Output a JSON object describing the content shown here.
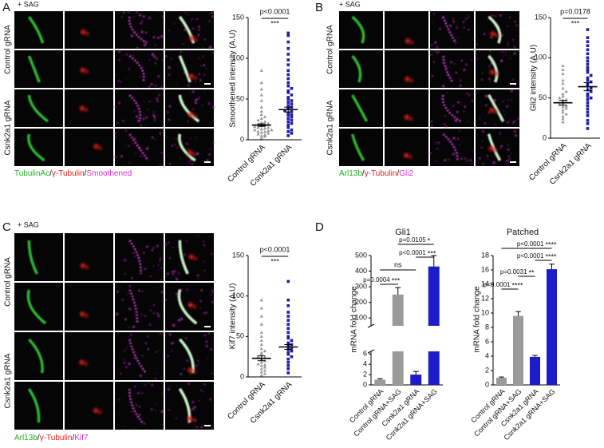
{
  "figure": {
    "panels": [
      {
        "letter": "A",
        "condition": "+ SAG",
        "rows": [
          "Control gRNA",
          "Csnk2a1 gRNA"
        ],
        "stain": [
          {
            "text": "TubulinAc",
            "color": "#22b022"
          },
          {
            "text": "/",
            "color": "#111111"
          },
          {
            "text": "γ-Tubulin",
            "color": "#e02020"
          },
          {
            "text": "/",
            "color": "#111111"
          },
          {
            "text": "Smoothened",
            "color": "#d030d0"
          }
        ]
      },
      {
        "letter": "B",
        "condition": "+ SAG",
        "rows": [
          "Control gRNA",
          "Csnk2a1 gRNA"
        ],
        "stain": [
          {
            "text": "Arl13b",
            "color": "#22b022"
          },
          {
            "text": "/",
            "color": "#111111"
          },
          {
            "text": "γ-Tubulin",
            "color": "#e02020"
          },
          {
            "text": "/",
            "color": "#111111"
          },
          {
            "text": "Gli2",
            "color": "#d030d0"
          }
        ]
      },
      {
        "letter": "C",
        "condition": "+ SAG",
        "rows": [
          "Control gRNA",
          "Csnk2a1 gRNA"
        ],
        "stain": [
          {
            "text": "Arl13b",
            "color": "#22b022"
          },
          {
            "text": "/",
            "color": "#111111"
          },
          {
            "text": "γ-Tubulin",
            "color": "#e02020"
          },
          {
            "text": "/",
            "color": "#111111"
          },
          {
            "text": "Kif7",
            "color": "#d030d0"
          }
        ]
      },
      {
        "letter": "D"
      }
    ]
  },
  "chart_data": [
    {
      "type": "dot",
      "ylabel": "Smoothened intensity (A.U)",
      "ylim": [
        0,
        150
      ],
      "yticks": [
        0,
        50,
        100,
        150
      ],
      "annotation": {
        "p": "p<0.0001",
        "stars": "***"
      },
      "series": [
        {
          "name": "Control gRNA",
          "color": "#9a9a9a",
          "marker": "triangle",
          "mean": 18,
          "sem": 1.5,
          "values": [
            2,
            4,
            5,
            6,
            7,
            8,
            9,
            10,
            10,
            11,
            12,
            12,
            13,
            14,
            15,
            15,
            16,
            17,
            18,
            19,
            20,
            21,
            22,
            24,
            26,
            28,
            31,
            35,
            40,
            48,
            55,
            62,
            70,
            85
          ]
        },
        {
          "name": "Csnk2a1 gRNA",
          "color": "#1c1ca8",
          "marker": "square",
          "mean": 37,
          "sem": 3,
          "values": [
            5,
            8,
            10,
            12,
            15,
            18,
            20,
            22,
            24,
            26,
            28,
            30,
            31,
            33,
            35,
            36,
            38,
            40,
            42,
            44,
            46,
            48,
            50,
            52,
            55,
            58,
            60,
            63,
            66,
            70,
            75,
            80,
            85,
            92,
            98,
            105,
            112,
            120,
            128,
            131
          ]
        }
      ]
    },
    {
      "type": "dot",
      "ylabel": "Gli2 intensity (A.U)",
      "ylim": [
        0,
        150
      ],
      "yticks": [
        0,
        50,
        100,
        150
      ],
      "annotation": {
        "p": "p=0.0178",
        "stars": "***"
      },
      "series": [
        {
          "name": "Control gRNA",
          "color": "#9a9a9a",
          "marker": "triangle",
          "mean": 44,
          "sem": 3,
          "values": [
            20,
            24,
            27,
            30,
            32,
            35,
            37,
            39,
            40,
            42,
            44,
            45,
            47,
            48,
            50,
            52,
            55,
            58,
            62,
            68,
            72,
            80,
            85,
            90
          ]
        },
        {
          "name": "Csnk2a1 gRNA",
          "color": "#1c1ca8",
          "marker": "square",
          "mean": 64,
          "sem": 5,
          "values": [
            12,
            18,
            22,
            28,
            32,
            36,
            40,
            44,
            48,
            50,
            52,
            55,
            58,
            60,
            62,
            65,
            68,
            70,
            72,
            75,
            78,
            82,
            85,
            88,
            92,
            96,
            100,
            105,
            110,
            115,
            120,
            125,
            135
          ]
        }
      ]
    },
    {
      "type": "dot",
      "ylabel": "Kif7 intensity (A.U)",
      "ylim": [
        0,
        150
      ],
      "yticks": [
        0,
        50,
        100,
        150
      ],
      "annotation": {
        "p": "p<0.0001",
        "stars": "***"
      },
      "series": [
        {
          "name": "Control gRNA",
          "color": "#9a9a9a",
          "marker": "triangle",
          "mean": 23,
          "sem": 3,
          "values": [
            2,
            4,
            6,
            8,
            10,
            12,
            14,
            15,
            16,
            18,
            20,
            22,
            24,
            25,
            28,
            30,
            32,
            35,
            40,
            45,
            50,
            55,
            65,
            75,
            85,
            95
          ]
        },
        {
          "name": "Csnk2a1 gRNA",
          "color": "#1c1ca8",
          "marker": "square",
          "mean": 37,
          "sem": 3,
          "values": [
            5,
            10,
            14,
            18,
            22,
            25,
            28,
            30,
            32,
            34,
            36,
            38,
            40,
            42,
            45,
            48,
            50,
            55,
            60,
            65,
            70,
            75,
            80,
            88,
            95,
            118
          ]
        }
      ]
    },
    {
      "type": "brokenbar",
      "title": "Gli1",
      "ylabel": "mRNA fold change",
      "categories": [
        "Control gRNA",
        "Control gRNA+SAG",
        "Csnk2a1 gRNA",
        "Csnk2a1 gRNA+SAG"
      ],
      "values": [
        1,
        250,
        2,
        430
      ],
      "errors": [
        0.2,
        45,
        0.6,
        70
      ],
      "colors": [
        "#9a9a9a",
        "#9a9a9a",
        "#1c1cc8",
        "#1c1cc8"
      ],
      "segments": [
        {
          "ylim": [
            0,
            6.5
          ],
          "yticks": [
            0,
            2,
            4,
            6
          ]
        },
        {
          "ylim": [
            50,
            500
          ],
          "yticks": [
            100,
            200,
            300,
            400,
            500
          ]
        }
      ],
      "annotations": [
        {
          "text": "p=0.0004",
          "stars": "***"
        },
        {
          "text": "ns"
        },
        {
          "text": "p<0.0001",
          "stars": "***"
        },
        {
          "text": "p=0.0105",
          "stars": "*"
        }
      ]
    },
    {
      "type": "bar",
      "title": "Patched",
      "ylabel": "mRNA fold change",
      "categories": [
        "Control gRNA",
        "Control gRNA+SAG",
        "Csnk2a1 gRNA",
        "Csnk2a1 gRNA+SAG"
      ],
      "values": [
        1,
        9.6,
        3.9,
        16.1
      ],
      "errors": [
        0.1,
        0.6,
        0.2,
        0.7
      ],
      "colors": [
        "#9a9a9a",
        "#9a9a9a",
        "#1c1cc8",
        "#1c1cc8"
      ],
      "ylim": [
        0,
        18
      ],
      "yticks": [
        0,
        2,
        4,
        6,
        8,
        10,
        12,
        14,
        16,
        18
      ],
      "annotations": [
        {
          "text": "p<0.0001",
          "stars": "****"
        },
        {
          "text": "p=0.0031",
          "stars": "**"
        },
        {
          "text": "p<0.0001",
          "stars": "****"
        },
        {
          "text": "p<0.0001",
          "stars": "****"
        }
      ]
    }
  ]
}
